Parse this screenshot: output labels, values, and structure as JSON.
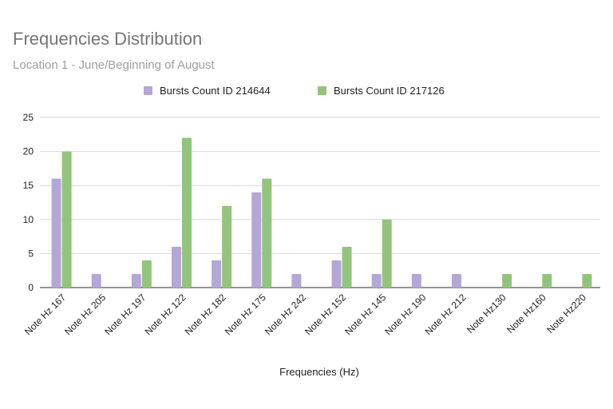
{
  "chart_data": {
    "type": "bar",
    "title": "Frequencies Distribution",
    "subtitle": "Location 1 - June/Beginning of August",
    "xlabel": "Frequencies (Hz)",
    "ylabel": "",
    "ylim": [
      0,
      25
    ],
    "yticks": [
      0,
      5,
      10,
      15,
      20,
      25
    ],
    "grid": true,
    "legend_position": "top",
    "categories": [
      "Note Hz 167",
      "Note Hz 205",
      "Note Hz 197",
      "Note Hz 122",
      "Note Hz 182",
      "Note Hz 175",
      "Note Hz 242",
      "Note Hz 152",
      "Note Hz 145",
      "Note Hz 190",
      "Note Hz 212",
      "Note Hz130",
      "Note Hz160",
      "Note Hz220"
    ],
    "series": [
      {
        "name": "Bursts Count ID 214644",
        "color": "#b4a7d6",
        "values": [
          16,
          2,
          2,
          6,
          4,
          14,
          2,
          4,
          2,
          2,
          2,
          0,
          0,
          0
        ]
      },
      {
        "name": "Bursts Count ID 217126",
        "color": "#93c47d",
        "values": [
          20,
          0,
          4,
          22,
          12,
          16,
          0,
          6,
          10,
          0,
          0,
          2,
          2,
          2
        ]
      }
    ]
  }
}
